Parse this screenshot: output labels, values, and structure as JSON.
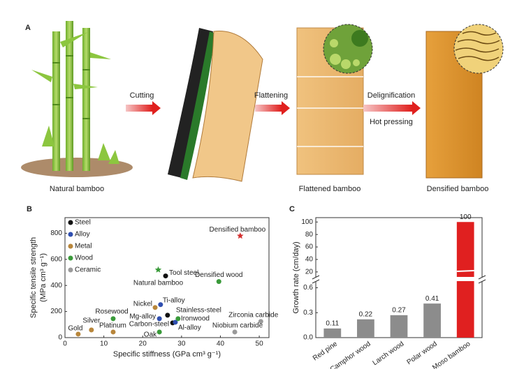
{
  "panel_a": {
    "label": "A",
    "steps": [
      "Cutting",
      "Flattening",
      "Delignification",
      "Hot pressing"
    ],
    "items": [
      "Natural bamboo",
      "Flattened bamboo",
      "Densified bamboo"
    ]
  },
  "chart_data": [
    {
      "type": "scatter",
      "panel_label": "B",
      "x_label": "Specific stiffness (GPa cm³ g⁻¹)",
      "y_label": "Specific tensile strength",
      "y_unit": "(MPa cm³ g⁻¹)",
      "xlim": [
        0,
        52.5
      ],
      "ylim": [
        0,
        920
      ],
      "xticks": [
        0,
        10,
        20,
        30,
        40,
        50
      ],
      "yticks": [
        0,
        200,
        400,
        600,
        800
      ],
      "series": [
        {
          "name": "Steel",
          "color": "#111111",
          "x": [
            25.9,
            26.4,
            27.7
          ],
          "values": [
            473,
            172,
            113
          ],
          "labels": [
            "Tool steel",
            "Stainless-steel",
            "Carbon-steel"
          ]
        },
        {
          "name": "Alloy",
          "color": "#2f4fb0",
          "x": [
            24.6,
            24.3,
            28.4
          ],
          "values": [
            253,
            145,
            118
          ],
          "labels": [
            "Ti-alloy",
            "Mg-alloy",
            "Al-alloy"
          ]
        },
        {
          "name": "Metal",
          "color": "#b8863b",
          "x": [
            23.2,
            6.8,
            3.4,
            12.4
          ],
          "values": [
            231,
            59,
            27,
            43
          ],
          "labels": [
            "Nickel",
            "Silver",
            "Gold",
            "Platinum"
          ]
        },
        {
          "name": "Wood",
          "color": "#3a9a3a",
          "x": [
            39.6,
            29.1,
            12.4,
            24.3
          ],
          "values": [
            430,
            145,
            145,
            43
          ],
          "labels": [
            "Densified wood",
            "Ironwood",
            "Rosewood",
            "Oak"
          ]
        },
        {
          "name": "Ceramic",
          "color": "#9a9a9a",
          "x": [
            50.4,
            43.7
          ],
          "values": [
            124,
            43
          ],
          "labels": [
            "Zirconia carbide",
            "Niobium carbide"
          ]
        }
      ],
      "highlights": [
        {
          "label": "Densified bamboo",
          "x": 45.1,
          "y": 780,
          "color": "#d32f2f",
          "marker": "star"
        },
        {
          "label": "Natural bamboo",
          "x": 24,
          "y": 520,
          "color": "#3a9a3a",
          "marker": "star"
        }
      ]
    },
    {
      "type": "broken-bar",
      "panel_label": "C",
      "y_label": "Growth rate (cm/day)",
      "categories": [
        "Red pine",
        "Camphor wood",
        "Larch wood",
        "Polar wood",
        "Moso bamboo"
      ],
      "values": [
        0.11,
        0.22,
        0.27,
        0.41,
        100
      ],
      "colors": [
        "#8c8c8c",
        "#8c8c8c",
        "#8c8c8c",
        "#8c8c8c",
        "#e02020"
      ],
      "lower": {
        "ylim": [
          0,
          0.68
        ],
        "yticks": [
          {
            "value": 0,
            "label": "0.0"
          },
          0.3,
          0.6
        ]
      },
      "upper": {
        "ylim": [
          12,
          107
        ],
        "yticks": [
          20,
          40,
          60,
          80,
          100
        ]
      }
    }
  ]
}
